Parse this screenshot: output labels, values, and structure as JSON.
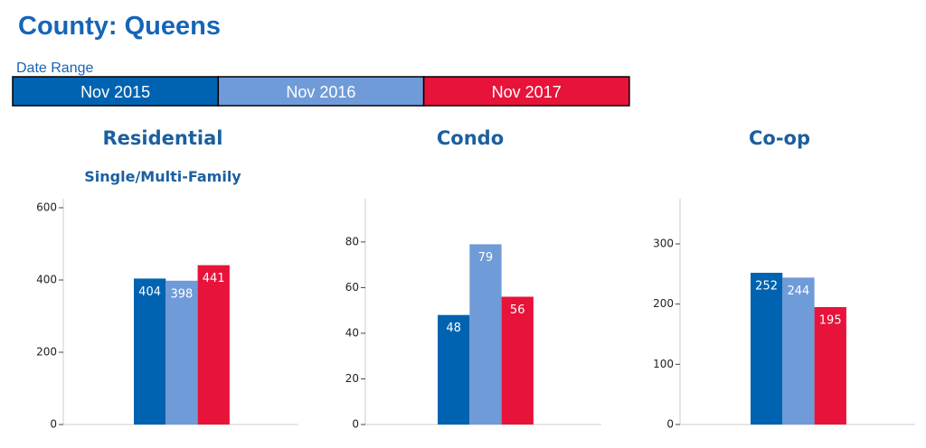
{
  "header": {
    "title": "County: Queens"
  },
  "legend": {
    "title": "Date Range",
    "items": [
      {
        "name": "Nov 2015",
        "color": "#0063b1"
      },
      {
        "name": "Nov 2016",
        "color": "#6f9bd8"
      },
      {
        "name": "Nov 2017",
        "color": "#e8133a"
      }
    ]
  },
  "chart_data": [
    {
      "type": "bar",
      "title": "Residential",
      "subtitle": "Single/Multi-Family",
      "values": [
        404,
        398,
        441
      ],
      "ylim": [
        0,
        600
      ],
      "yticks": [
        0,
        200,
        400,
        600
      ]
    },
    {
      "type": "bar",
      "title": "Condo",
      "values": [
        48,
        79,
        56
      ],
      "ylim": [
        0,
        95
      ],
      "yticks": [
        0,
        20,
        40,
        60,
        80
      ]
    },
    {
      "type": "bar",
      "title": "Co-op",
      "values": [
        252,
        244,
        195
      ],
      "ylim": [
        0,
        360
      ],
      "yticks": [
        0,
        100,
        200,
        300
      ]
    }
  ]
}
